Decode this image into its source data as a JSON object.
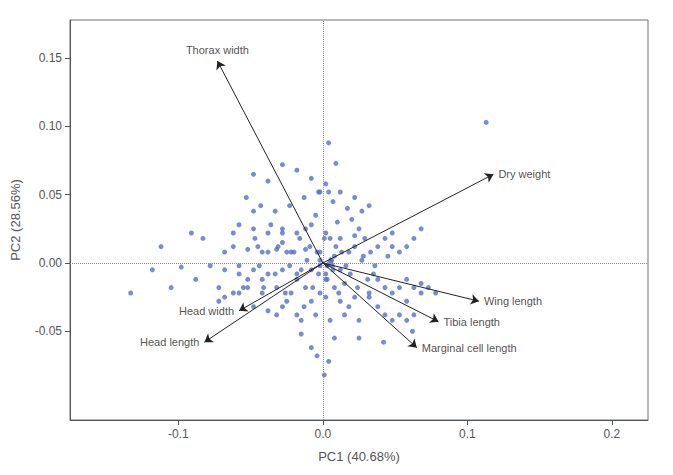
{
  "chart_data": {
    "type": "scatter",
    "xlabel": "PC1 (40.68%)",
    "ylabel": "PC2 (28.56%)",
    "xlim": [
      -0.175,
      0.225
    ],
    "ylim": [
      -0.115,
      0.178
    ],
    "xticks": [
      -0.1,
      {
        "value": 0,
        "label": "0.0"
      },
      0.1,
      0.2
    ],
    "yticks": [
      -0.05,
      {
        "value": 0,
        "label": "0.00"
      },
      0.05,
      {
        "value": 0.1,
        "label": "0.10"
      },
      0.15
    ],
    "grid": false,
    "reference_lines": {
      "x": 0,
      "y": 0
    },
    "arrow_origin": [
      0,
      0
    ],
    "arrows": [
      {
        "label": "Thorax width",
        "x": -0.073,
        "y": 0.148
      },
      {
        "label": "Dry weight",
        "x": 0.118,
        "y": 0.065
      },
      {
        "label": "Wing length",
        "x": 0.108,
        "y": -0.028
      },
      {
        "label": "Tibia length",
        "x": 0.08,
        "y": -0.043
      },
      {
        "label": "Marginal cell length",
        "x": 0.065,
        "y": -0.062
      },
      {
        "label": "Head width",
        "x": -0.058,
        "y": -0.035
      },
      {
        "label": "Head length",
        "x": -0.082,
        "y": -0.058
      }
    ],
    "series": [
      {
        "marker": "circle",
        "values": [
          [
            -0.133,
            -0.022
          ],
          [
            -0.118,
            -0.005
          ],
          [
            -0.112,
            0.012
          ],
          [
            -0.105,
            -0.018
          ],
          [
            -0.098,
            -0.003
          ],
          [
            -0.091,
            0.022
          ],
          [
            -0.088,
            -0.012
          ],
          [
            -0.083,
            0.018
          ],
          [
            -0.078,
            -0.002
          ],
          [
            -0.072,
            -0.028
          ],
          [
            -0.068,
            0.008
          ],
          [
            -0.062,
            0.022
          ],
          [
            -0.058,
            -0.002
          ],
          [
            -0.052,
            -0.012
          ],
          [
            -0.048,
            0.038
          ],
          [
            -0.047,
            0.018
          ],
          [
            -0.044,
            -0.002
          ],
          [
            -0.041,
            -0.018
          ],
          [
            -0.038,
            0.008
          ],
          [
            -0.036,
            0.028
          ],
          [
            -0.033,
            -0.008
          ],
          [
            -0.031,
            0.012
          ],
          [
            -0.028,
            0.022
          ],
          [
            -0.026,
            -0.022
          ],
          [
            -0.023,
            -0.002
          ],
          [
            -0.02,
            0.008
          ],
          [
            -0.018,
            -0.012
          ],
          [
            -0.016,
            0.018
          ],
          [
            -0.013,
            -0.032
          ],
          [
            -0.011,
            0.002
          ],
          [
            -0.009,
            0.012
          ],
          [
            -0.007,
            -0.018
          ],
          [
            -0.004,
            0.008
          ],
          [
            -0.002,
            -0.002
          ],
          [
            0.001,
            0.018
          ],
          [
            0.003,
            -0.012
          ],
          [
            0.006,
            0.002
          ],
          [
            0.009,
            0.012
          ],
          [
            0.011,
            -0.022
          ],
          [
            0.013,
            0.008
          ],
          [
            0.016,
            -0.002
          ],
          [
            0.019,
            -0.008
          ],
          [
            0.022,
            0.012
          ],
          [
            0.024,
            -0.018
          ],
          [
            0.027,
            0.002
          ],
          [
            0.029,
            0.018
          ],
          [
            0.031,
            -0.012
          ],
          [
            0.033,
            0.008
          ],
          [
            0.036,
            -0.002
          ],
          [
            -0.038,
            -0.035
          ],
          [
            -0.028,
            -0.032
          ],
          [
            -0.018,
            -0.038
          ],
          [
            -0.068,
            -0.025
          ],
          [
            -0.058,
            -0.022
          ],
          [
            -0.008,
            -0.028
          ],
          [
            0.002,
            -0.025
          ],
          [
            0.012,
            -0.028
          ],
          [
            0.022,
            -0.025
          ],
          [
            0.032,
            -0.022
          ],
          [
            -0.015,
            -0.042
          ],
          [
            -0.005,
            -0.038
          ],
          [
            0.005,
            -0.042
          ],
          [
            0.015,
            -0.038
          ],
          [
            0.025,
            -0.042
          ],
          [
            -0.048,
            0.065
          ],
          [
            -0.038,
            0.06
          ],
          [
            -0.028,
            0.072
          ],
          [
            -0.018,
            0.068
          ],
          [
            -0.008,
            0.062
          ],
          [
            0.002,
            0.058
          ],
          [
            0.012,
            0.052
          ],
          [
            0.022,
            0.048
          ],
          [
            0.032,
            0.042
          ],
          [
            -0.053,
            0.048
          ],
          [
            -0.043,
            0.042
          ],
          [
            -0.033,
            0.038
          ],
          [
            -0.023,
            0.042
          ],
          [
            -0.013,
            0.048
          ],
          [
            -0.003,
            0.052
          ],
          [
            0.007,
            0.045
          ],
          [
            0.017,
            0.04
          ],
          [
            0.027,
            0.038
          ],
          [
            -0.058,
            0.028
          ],
          [
            -0.048,
            0.025
          ],
          [
            -0.038,
            0.022
          ],
          [
            -0.028,
            0.025
          ],
          [
            -0.018,
            0.022
          ],
          [
            -0.008,
            0.028
          ],
          [
            0.002,
            0.022
          ],
          [
            0.012,
            0.018
          ],
          [
            0.022,
            0.02
          ],
          [
            -0.062,
            0.012
          ],
          [
            -0.052,
            0.01
          ],
          [
            -0.042,
            0.008
          ],
          [
            -0.032,
            0.01
          ],
          [
            -0.022,
            0.008
          ],
          [
            -0.012,
            0.01
          ],
          [
            -0.002,
            0.008
          ],
          [
            0.008,
            0.005
          ],
          [
            0.018,
            0.008
          ],
          [
            -0.068,
            -0.005
          ],
          [
            -0.058,
            -0.008
          ],
          [
            -0.048,
            -0.005
          ],
          [
            -0.038,
            -0.008
          ],
          [
            -0.028,
            -0.005
          ],
          [
            -0.018,
            -0.008
          ],
          [
            -0.008,
            -0.005
          ],
          [
            0.002,
            -0.008
          ],
          [
            0.012,
            -0.005
          ],
          [
            -0.072,
            -0.018
          ],
          [
            -0.062,
            -0.022
          ],
          [
            -0.052,
            -0.018
          ],
          [
            -0.042,
            -0.022
          ],
          [
            -0.032,
            -0.018
          ],
          [
            -0.022,
            -0.022
          ],
          [
            -0.012,
            -0.018
          ],
          [
            -0.002,
            -0.022
          ],
          [
            0.008,
            -0.018
          ],
          [
            0.038,
            -0.012
          ],
          [
            0.043,
            -0.018
          ],
          [
            0.048,
            -0.022
          ],
          [
            0.053,
            -0.018
          ],
          [
            0.058,
            -0.012
          ],
          [
            0.063,
            -0.018
          ],
          [
            0.068,
            -0.022
          ],
          [
            0.073,
            -0.018
          ],
          [
            0.038,
            0.012
          ],
          [
            0.043,
            0.018
          ],
          [
            0.048,
            0.012
          ],
          [
            0.053,
            0.008
          ],
          [
            0.058,
            0.012
          ],
          [
            0.063,
            0.018
          ],
          [
            0.038,
            -0.032
          ],
          [
            0.043,
            -0.038
          ],
          [
            0.048,
            -0.042
          ],
          [
            0.053,
            -0.038
          ],
          [
            0.058,
            -0.042
          ],
          [
            0.063,
            -0.038
          ],
          [
            0.113,
            0.103
          ],
          [
            0.004,
            0.088
          ],
          [
            0.009,
            0.073
          ],
          [
            -0.002,
            0.052
          ],
          [
            0.004,
            0.052
          ],
          [
            0.001,
            -0.082
          ],
          [
            0.004,
            -0.072
          ],
          [
            -0.004,
            -0.068
          ],
          [
            0.002,
            -0.012
          ],
          [
            -0.003,
            -0.008
          ],
          [
            0.007,
            -0.005
          ],
          [
            -0.002,
            0.002
          ],
          [
            0.003,
            -0.002
          ],
          [
            -0.025,
            -0.028
          ],
          [
            -0.032,
            -0.038
          ],
          [
            0.018,
            -0.032
          ],
          [
            0.058,
            -0.028
          ],
          [
            0.068,
            -0.015
          ],
          [
            0.078,
            -0.022
          ],
          [
            0.048,
            0.022
          ],
          [
            0.068,
            0.025
          ],
          [
            0.025,
            -0.055
          ],
          [
            0.042,
            -0.058
          ],
          [
            0.062,
            -0.05
          ],
          [
            -0.015,
            -0.052
          ],
          [
            -0.008,
            -0.062
          ],
          [
            0.008,
            -0.055
          ],
          [
            -0.005,
            0.035
          ],
          [
            0.01,
            0.03
          ],
          [
            0.02,
            0.032
          ],
          [
            -0.045,
            0.012
          ],
          [
            -0.028,
            0.015
          ],
          [
            -0.042,
            -0.012
          ],
          [
            0.028,
            0.005
          ],
          [
            0.035,
            -0.008
          ],
          [
            0.025,
            0.025
          ],
          [
            0.015,
            -0.015
          ],
          [
            -0.012,
            0.025
          ],
          [
            -0.025,
            0.008
          ],
          [
            0.005,
            0.018
          ],
          [
            -0.015,
            -0.005
          ],
          [
            0.032,
            -0.025
          ],
          [
            -0.048,
            -0.032
          ],
          [
            -0.055,
            -0.018
          ],
          [
            0.045,
            0.005
          ]
        ]
      },
      {
        "marker": "triangle",
        "values": [
          [
            0.005,
            0.001
          ]
        ]
      }
    ]
  }
}
